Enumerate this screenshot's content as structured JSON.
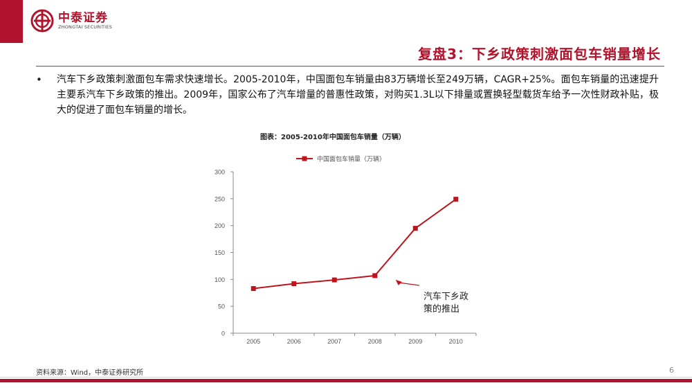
{
  "logo": {
    "cn": "中泰证券",
    "en": "ZHONGTAI SECURITIES"
  },
  "title": "复盘3：下乡政策刺激面包车销量增长",
  "bullet": "汽车下乡政策刺激面包车需求快速增长。2005-2010年，中国面包车销量由83万辆增长至249万辆，CAGR+25%。面包车销量的迅速提升主要系汽车下乡政策的推出。2009年，国家公布了汽车增量的普惠性政策，对购买1.3L以下排量或置换轻型载货车给予一次性财政补贴，极大的促进了面包车销量的增长。",
  "chart_caption": "图表：2005-2010年中国面包车销量（万辆）",
  "chart_data": {
    "type": "line",
    "title": "",
    "categories": [
      "2005",
      "2006",
      "2007",
      "2008",
      "2009",
      "2010"
    ],
    "series": [
      {
        "name": "中国面包车销量（万辆）",
        "values": [
          83,
          92,
          99,
          107,
          195,
          249
        ],
        "color": "#c0141c"
      }
    ],
    "ylim": [
      0,
      300
    ],
    "yticks": [
      "0",
      "50",
      "100",
      "150",
      "200",
      "250",
      "300"
    ],
    "grid": false,
    "legend": "top",
    "annotation": {
      "lines": [
        "汽车下乡政",
        "策的推出"
      ],
      "category": "2008",
      "value": 107
    }
  },
  "source": "资料来源：Wind，中泰证券研究所",
  "page_number": "6"
}
